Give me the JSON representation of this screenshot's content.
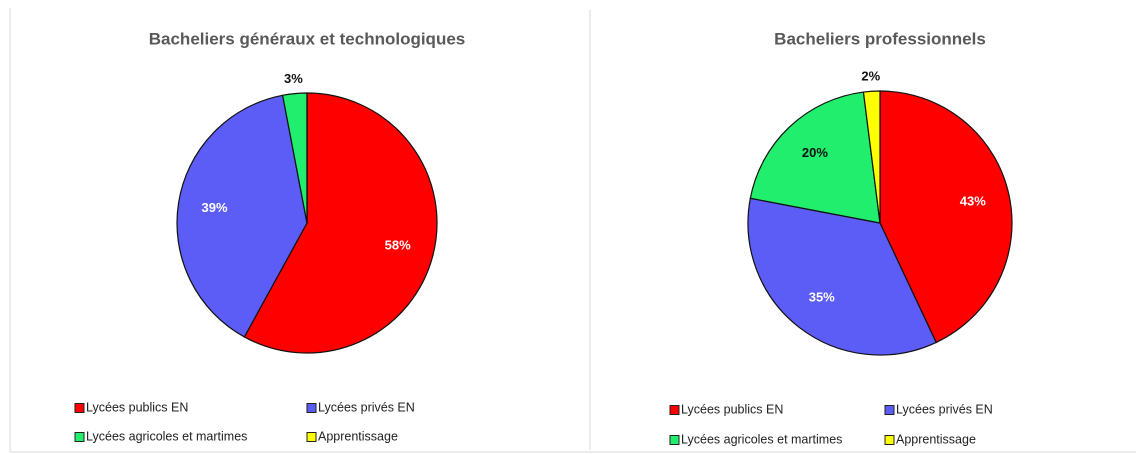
{
  "chart_data": [
    {
      "type": "pie",
      "title": "Bacheliers généraux et technologiques",
      "categories": [
        "Lycées publics EN",
        "Lycées privés EN",
        "Lycées agricoles et martimes",
        "Apprentissage"
      ],
      "values": [
        58,
        39,
        3,
        0
      ],
      "value_labels": [
        "58%",
        "39%",
        "3%",
        null
      ],
      "colors": [
        "#ff0000",
        "#5c5cf6",
        "#22ee6e",
        "#ffff00"
      ],
      "legend": "bottom"
    },
    {
      "type": "pie",
      "title": "Bacheliers professionnels",
      "categories": [
        "Lycées publics EN",
        "Lycées privés EN",
        "Lycées agricoles et martimes",
        "Apprentissage"
      ],
      "values": [
        43,
        35,
        20,
        2
      ],
      "value_labels": [
        "43%",
        "35%",
        "20%",
        "2%"
      ],
      "colors": [
        "#ff0000",
        "#5c5cf6",
        "#22ee6e",
        "#ffff00"
      ],
      "legend": "bottom"
    }
  ]
}
